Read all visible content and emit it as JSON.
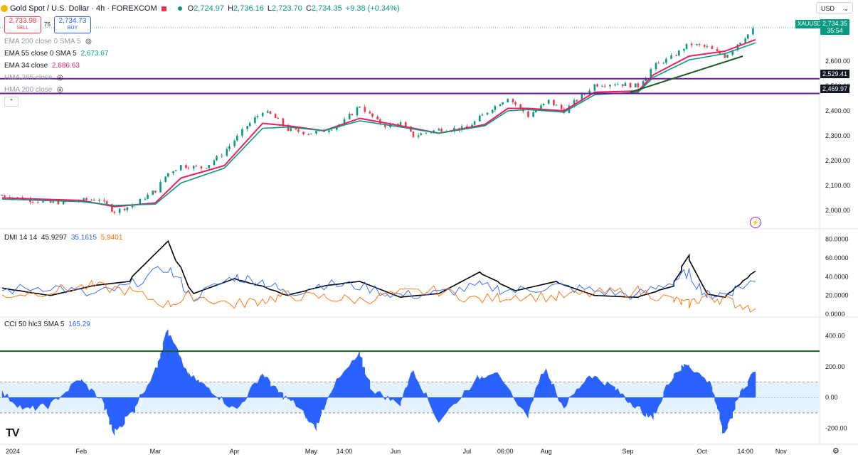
{
  "header": {
    "title": "Gold Spot / U.S. Dollar · 4h · FOREXCOM",
    "open_label": "O",
    "open": "2,724.97",
    "high_label": "H",
    "high": "2,736.16",
    "low_label": "L",
    "low": "2,723.70",
    "close_label": "C",
    "close": "2,734.35",
    "change": "+9.38 (+0.34%)"
  },
  "quote": {
    "sell_price": "2,733.98",
    "sell_label": "SELL",
    "spread": "75",
    "buy_price": "2,734.73",
    "buy_label": "BUY"
  },
  "currency": "USD",
  "indicators": [
    {
      "name": "EMA 200 close 0 SMA 5",
      "value": "",
      "color": "#9598a1"
    },
    {
      "name": "EMA 55 close 0 SMA 5",
      "value": "2,673.67",
      "color": "#089981"
    },
    {
      "name": "EMA 34 close",
      "value": "2,686.63",
      "color": "#e91e63"
    },
    {
      "name": "HMA 365 close",
      "value": "",
      "color": "#9598a1"
    },
    {
      "name": "HMA 200 close",
      "value": "",
      "color": "#9598a1"
    }
  ],
  "dmi_label": {
    "name": "DMI 14 14",
    "adx": "45.9297",
    "plus_di": "35.1615",
    "minus_di": "5.9401"
  },
  "cci_label": {
    "name": "CCI 50 hlc3 SMA 5",
    "value": "165.29"
  },
  "price_tags": {
    "symbol": "XAUUSD",
    "last": "2,734.35",
    "countdown": "35:54",
    "hline1": "2,529.41",
    "hline2": "2,469.97"
  },
  "x_axis_labels": [
    "2024",
    "Feb",
    "Mar",
    "Apr",
    "May",
    "14:00",
    "Jun",
    "Jul",
    "06:00",
    "Aug",
    "Sep",
    "Oct",
    "14:00",
    "Nov"
  ],
  "colors": {
    "up": "#089981",
    "down": "#f23645",
    "ema34": "#e91e63",
    "ema55": "#089981",
    "hline": "#6a1b9a",
    "trend": "#1b5e20",
    "adx": "#000000",
    "plus_di": "#2962ff",
    "minus_di": "#ff6d00",
    "cci": "#2962ff",
    "cci_band": "#e3f2fd"
  },
  "chart_data": [
    {
      "type": "candlestick",
      "title": "Gold Spot / U.S. Dollar · 4h · FOREXCOM",
      "y_ticks": [
        2000,
        2100,
        2200,
        2300,
        2400,
        2500,
        2600
      ],
      "ylim": [
        1960,
        2760
      ],
      "horizontal_lines": [
        2529.41,
        2469.97
      ],
      "close_path": {
        "x": [
          "2024-01-01",
          "2024-01-10",
          "2024-01-20",
          "2024-02-01",
          "2024-02-08",
          "2024-02-14",
          "2024-02-22",
          "2024-03-01",
          "2024-03-06",
          "2024-03-11",
          "2024-03-20",
          "2024-03-28",
          "2024-04-05",
          "2024-04-12",
          "2024-04-16",
          "2024-04-22",
          "2024-04-30",
          "2024-05-06",
          "2024-05-13",
          "2024-05-20",
          "2024-05-29",
          "2024-06-05",
          "2024-06-10",
          "2024-06-20",
          "2024-07-01",
          "2024-07-08",
          "2024-07-17",
          "2024-07-25",
          "2024-08-02",
          "2024-08-08",
          "2024-08-20",
          "2024-08-28",
          "2024-09-06",
          "2024-09-12",
          "2024-09-20",
          "2024-09-26",
          "2024-10-03",
          "2024-10-10",
          "2024-10-16",
          "2024-10-22"
        ],
        "y": [
          2060,
          2045,
          2030,
          2040,
          2045,
          1995,
          2025,
          2080,
          2150,
          2180,
          2170,
          2235,
          2330,
          2400,
          2380,
          2325,
          2310,
          2320,
          2350,
          2420,
          2340,
          2350,
          2300,
          2325,
          2330,
          2390,
          2455,
          2380,
          2440,
          2400,
          2505,
          2510,
          2500,
          2580,
          2620,
          2670,
          2655,
          2620,
          2680,
          2734
        ]
      },
      "series": [
        {
          "name": "EMA 34 close",
          "x": [
            "2024-01-01",
            "2024-02-01",
            "2024-02-14",
            "2024-03-01",
            "2024-03-11",
            "2024-03-28",
            "2024-04-12",
            "2024-04-22",
            "2024-05-06",
            "2024-05-20",
            "2024-06-05",
            "2024-06-20",
            "2024-07-08",
            "2024-07-17",
            "2024-07-25",
            "2024-08-08",
            "2024-08-20",
            "2024-09-06",
            "2024-09-12",
            "2024-09-26",
            "2024-10-10",
            "2024-10-22"
          ],
          "y": [
            2050,
            2040,
            2015,
            2030,
            2130,
            2180,
            2350,
            2340,
            2320,
            2370,
            2340,
            2310,
            2345,
            2410,
            2410,
            2400,
            2475,
            2480,
            2545,
            2620,
            2640,
            2686.63
          ]
        },
        {
          "name": "EMA 55 close 0 SMA 5",
          "x": [
            "2024-01-01",
            "2024-02-01",
            "2024-02-14",
            "2024-03-01",
            "2024-03-11",
            "2024-03-28",
            "2024-04-12",
            "2024-04-22",
            "2024-05-06",
            "2024-05-20",
            "2024-06-05",
            "2024-06-20",
            "2024-07-08",
            "2024-07-17",
            "2024-07-25",
            "2024-08-08",
            "2024-08-20",
            "2024-09-06",
            "2024-09-12",
            "2024-09-26",
            "2024-10-10",
            "2024-10-22"
          ],
          "y": [
            2045,
            2035,
            2020,
            2025,
            2110,
            2170,
            2330,
            2335,
            2320,
            2360,
            2335,
            2310,
            2340,
            2400,
            2405,
            2395,
            2465,
            2475,
            2535,
            2605,
            2630,
            2673.67
          ]
        }
      ],
      "trendline": {
        "x": [
          "2024-09-03",
          "2024-10-17"
        ],
        "y": [
          2475,
          2620
        ]
      }
    },
    {
      "type": "line",
      "title": "DMI 14 14",
      "y_ticks": [
        0,
        20,
        40,
        60,
        80
      ],
      "ylim": [
        -3,
        85
      ],
      "series": [
        {
          "name": "ADX",
          "x": [
            "2024-01-01",
            "2024-01-20",
            "2024-02-05",
            "2024-02-20",
            "2024-03-06",
            "2024-03-16",
            "2024-04-01",
            "2024-04-12",
            "2024-04-22",
            "2024-05-06",
            "2024-05-20",
            "2024-06-05",
            "2024-06-20",
            "2024-07-06",
            "2024-07-20",
            "2024-08-05",
            "2024-08-20",
            "2024-09-06",
            "2024-09-20",
            "2024-09-26",
            "2024-10-03",
            "2024-10-10",
            "2024-10-22"
          ],
          "y": [
            28,
            20,
            30,
            35,
            78,
            22,
            38,
            30,
            20,
            30,
            35,
            18,
            22,
            45,
            25,
            35,
            20,
            18,
            30,
            63,
            22,
            18,
            45.93
          ]
        },
        {
          "name": "+DI",
          "x": [
            "2024-01-01",
            "2024-01-20",
            "2024-02-05",
            "2024-02-20",
            "2024-03-06",
            "2024-03-16",
            "2024-04-01",
            "2024-04-12",
            "2024-04-22",
            "2024-05-06",
            "2024-05-20",
            "2024-06-05",
            "2024-06-20",
            "2024-07-06",
            "2024-07-20",
            "2024-08-05",
            "2024-08-20",
            "2024-09-06",
            "2024-09-20",
            "2024-09-26",
            "2024-10-03",
            "2024-10-10",
            "2024-10-22"
          ],
          "y": [
            25,
            30,
            20,
            30,
            50,
            18,
            40,
            35,
            22,
            32,
            30,
            20,
            22,
            30,
            25,
            30,
            25,
            20,
            35,
            45,
            20,
            22,
            35.16
          ]
        },
        {
          "name": "-DI",
          "x": [
            "2024-01-01",
            "2024-01-20",
            "2024-02-05",
            "2024-02-20",
            "2024-03-06",
            "2024-03-16",
            "2024-04-01",
            "2024-04-12",
            "2024-04-22",
            "2024-05-06",
            "2024-05-20",
            "2024-06-05",
            "2024-06-20",
            "2024-07-06",
            "2024-07-20",
            "2024-08-05",
            "2024-08-20",
            "2024-09-06",
            "2024-09-20",
            "2024-09-26",
            "2024-10-03",
            "2024-10-10",
            "2024-10-22"
          ],
          "y": [
            20,
            25,
            30,
            25,
            10,
            20,
            10,
            15,
            20,
            18,
            15,
            22,
            25,
            15,
            20,
            18,
            22,
            25,
            15,
            10,
            20,
            15,
            5.94
          ]
        }
      ]
    },
    {
      "type": "area",
      "title": "CCI 50 hlc3 SMA 5",
      "y_ticks": [
        -200,
        0,
        200,
        400
      ],
      "ylim": [
        -280,
        480
      ],
      "horizontal_lines": [
        300,
        100,
        -100
      ],
      "series": [
        {
          "name": "CCI",
          "x": [
            "2024-01-01",
            "2024-01-10",
            "2024-01-20",
            "2024-02-01",
            "2024-02-10",
            "2024-02-14",
            "2024-02-22",
            "2024-03-02",
            "2024-03-06",
            "2024-03-14",
            "2024-03-22",
            "2024-04-02",
            "2024-04-12",
            "2024-04-18",
            "2024-04-25",
            "2024-05-03",
            "2024-05-10",
            "2024-05-20",
            "2024-05-25",
            "2024-06-05",
            "2024-06-10",
            "2024-06-20",
            "2024-07-05",
            "2024-07-12",
            "2024-07-25",
            "2024-08-01",
            "2024-08-08",
            "2024-08-18",
            "2024-08-28",
            "2024-09-05",
            "2024-09-12",
            "2024-09-20",
            "2024-09-26",
            "2024-10-05",
            "2024-10-10",
            "2024-10-16",
            "2024-10-22"
          ],
          "y": [
            40,
            -80,
            -50,
            120,
            -30,
            -230,
            -80,
            200,
            440,
            150,
            60,
            -80,
            160,
            40,
            -40,
            -200,
            80,
            280,
            50,
            -40,
            180,
            -160,
            120,
            170,
            -120,
            200,
            -60,
            150,
            60,
            -50,
            -140,
            150,
            220,
            80,
            -250,
            20,
            165.29
          ]
        }
      ]
    }
  ]
}
